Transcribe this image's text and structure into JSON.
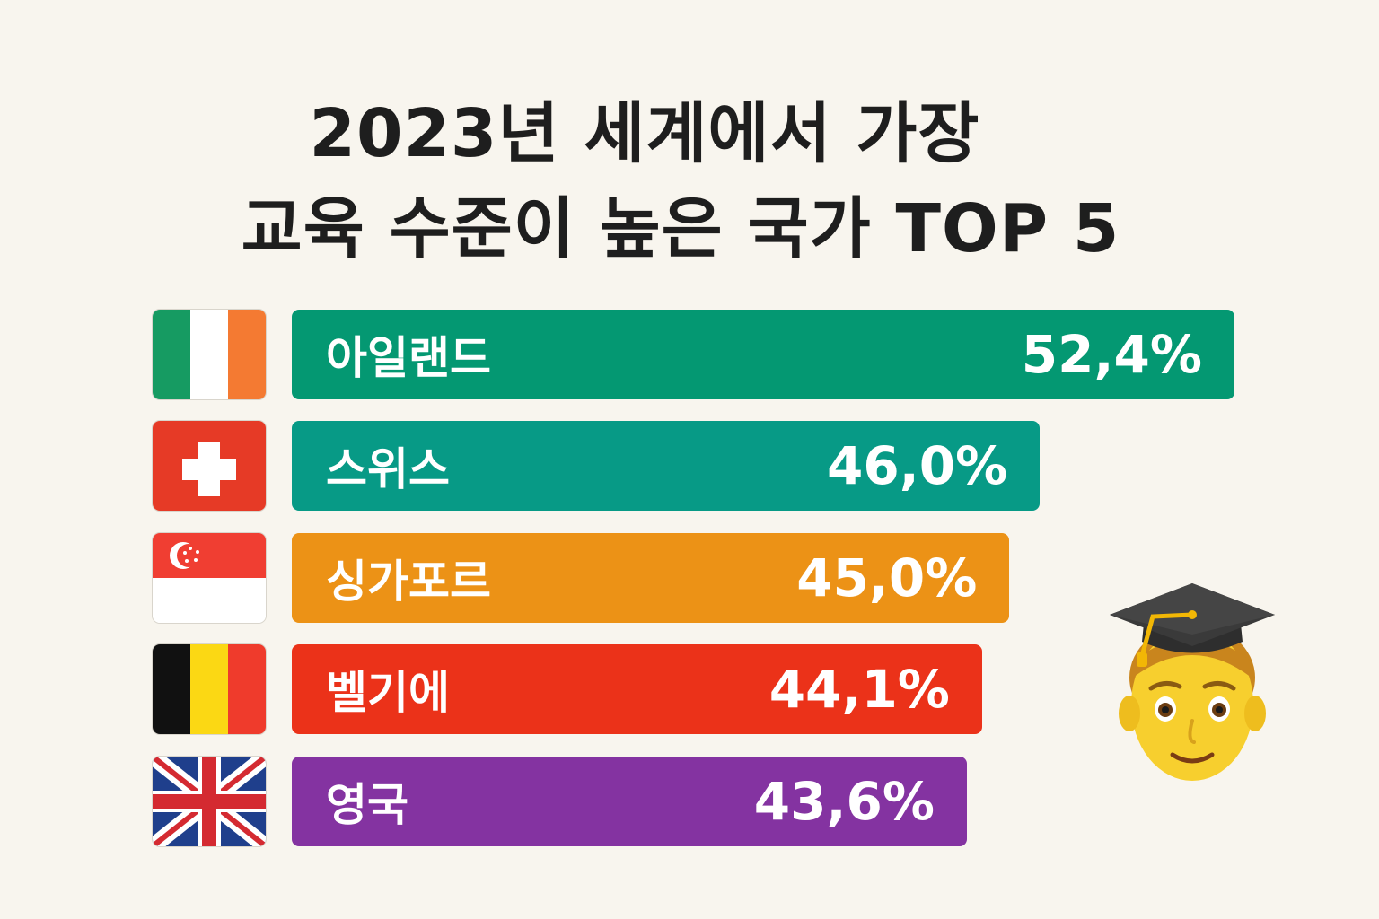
{
  "title": {
    "line1": "2023년 세계에서 가장",
    "line2": "교육 수준이 높은 국가 TOP 5"
  },
  "chart_data": {
    "type": "bar",
    "orientation": "horizontal",
    "title": "2023년 세계에서 가장 교육 수준이 높은 국가 TOP 5",
    "categories": [
      "아일랜드",
      "스위스",
      "싱가포르",
      "벨기에",
      "영국"
    ],
    "values": [
      52.4,
      46.0,
      45.0,
      44.1,
      43.6
    ],
    "value_labels": [
      "52,4%",
      "46,0%",
      "45,0%",
      "44,1%",
      "43,6%"
    ],
    "colors": [
      "#049872",
      "#079a86",
      "#ec9216",
      "#eb3219",
      "#8433a1"
    ],
    "flags": [
      "ireland-flag",
      "switzerland-flag",
      "singapore-flag",
      "belgium-flag",
      "uk-flag"
    ],
    "grid": false,
    "legend": "none"
  },
  "decorations": {
    "student_icon": "graduate-student-emoji"
  }
}
